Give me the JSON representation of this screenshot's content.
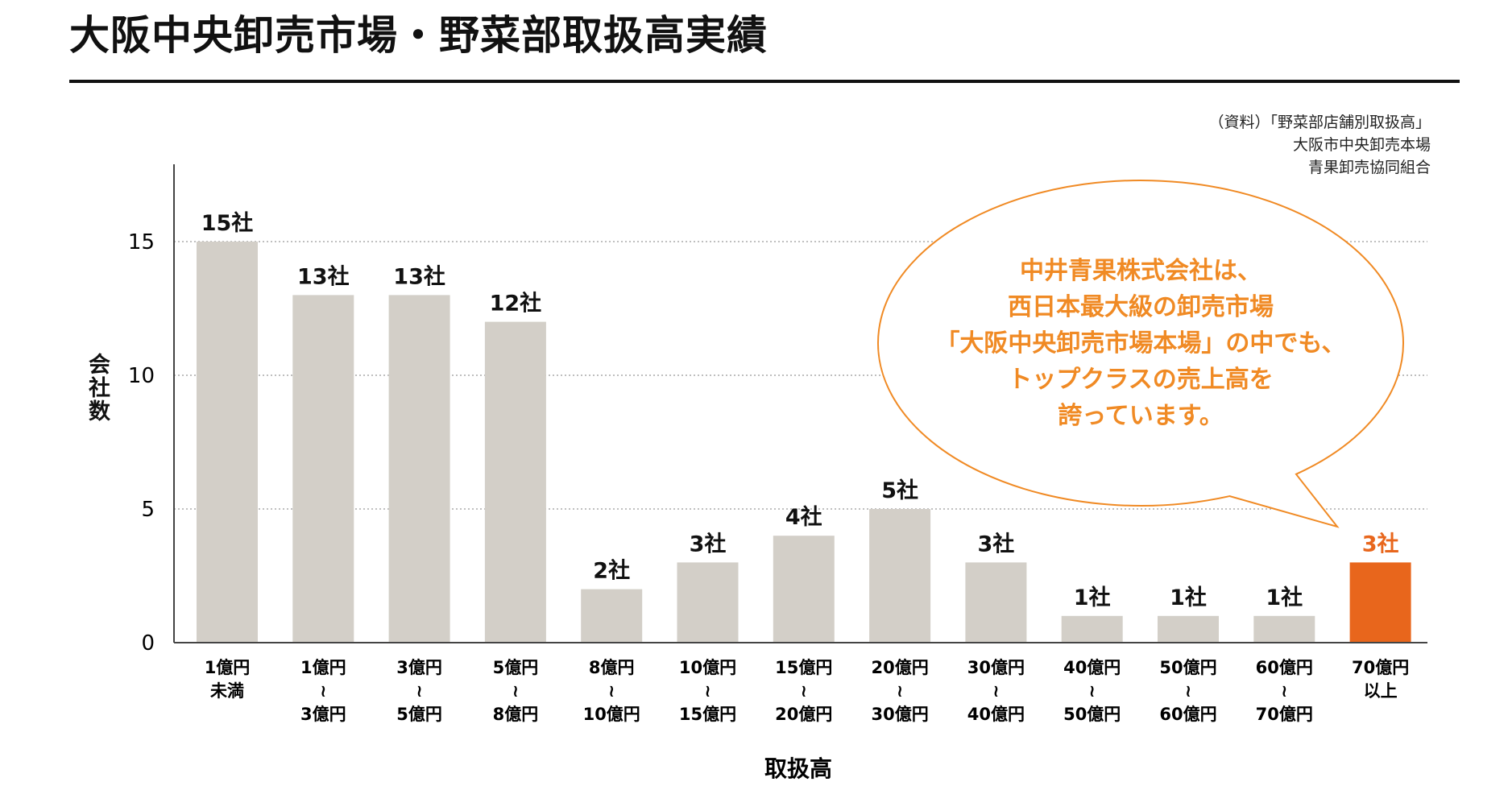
{
  "header": {
    "title": "大阪中央卸売市場・野菜部取扱高実績"
  },
  "source": {
    "lines": [
      "（資料）「野菜部店舗別取扱高」",
      "大阪市中央卸売本場",
      "青果卸売協同組合"
    ]
  },
  "callout": {
    "lines": [
      "中井青果株式会社は、",
      "西日本最大級の卸売市場",
      "「大阪中央卸売市場本場」の中でも、",
      "トップクラスの売上高を",
      "誇っています。"
    ]
  },
  "colors": {
    "bar": "#d3cfc8",
    "highlight": "#e8661c",
    "callout": "#f08a24"
  },
  "chart_data": {
    "type": "bar",
    "title": "大阪中央卸売市場・野菜部取扱高実績",
    "xlabel": "取扱高",
    "ylabel": "会社数",
    "ylim": [
      0,
      15
    ],
    "yticks": [
      0,
      5,
      10,
      15
    ],
    "grid": "dotted horizontal",
    "categories": [
      [
        "1億円",
        "未満"
      ],
      [
        "1億円",
        "〜",
        "3億円"
      ],
      [
        "3億円",
        "〜",
        "5億円"
      ],
      [
        "5億円",
        "〜",
        "8億円"
      ],
      [
        "8億円",
        "〜",
        "10億円"
      ],
      [
        "10億円",
        "〜",
        "15億円"
      ],
      [
        "15億円",
        "〜",
        "20億円"
      ],
      [
        "20億円",
        "〜",
        "30億円"
      ],
      [
        "30億円",
        "〜",
        "40億円"
      ],
      [
        "40億円",
        "〜",
        "50億円"
      ],
      [
        "50億円",
        "〜",
        "60億円"
      ],
      [
        "60億円",
        "〜",
        "70億円"
      ],
      [
        "70億円",
        "以上"
      ]
    ],
    "values": [
      15,
      13,
      13,
      12,
      2,
      3,
      4,
      5,
      3,
      1,
      1,
      1,
      3
    ],
    "data_labels": [
      "15社",
      "13社",
      "13社",
      "12社",
      "2社",
      "3社",
      "4社",
      "5社",
      "3社",
      "1社",
      "1社",
      "1社",
      "3社"
    ],
    "highlight_index": 12
  }
}
